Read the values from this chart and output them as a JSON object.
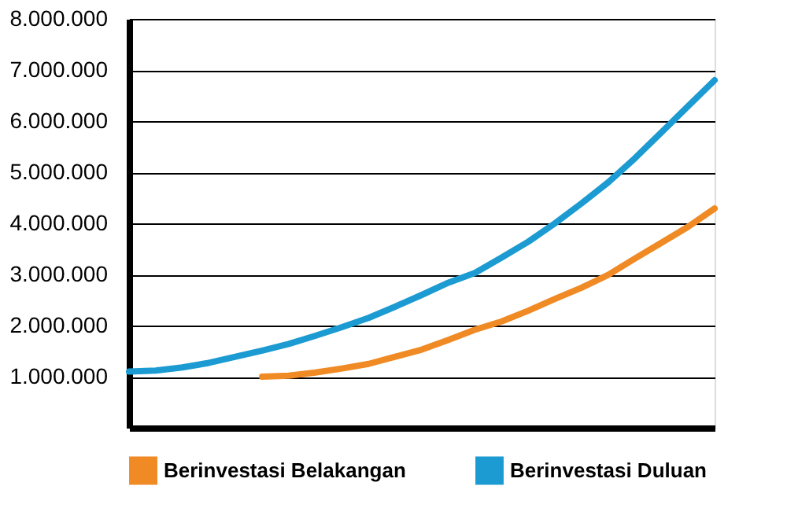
{
  "chart_data": {
    "type": "line",
    "categories": [
      null,
      null,
      null,
      null,
      null,
      null,
      null,
      null,
      null,
      null,
      null,
      null,
      null,
      null,
      null,
      null,
      null,
      null,
      null,
      null,
      null,
      null,
      null
    ],
    "series": [
      {
        "name": "Berinvestasi Belakangan",
        "color": "#f08a24",
        "values": [
          null,
          null,
          null,
          null,
          null,
          1000000,
          1020000,
          1080000,
          1160000,
          1250000,
          1390000,
          1530000,
          1720000,
          1920000,
          2080000,
          2290000,
          2520000,
          2740000,
          2990000,
          3310000,
          3620000,
          3930000,
          4290000
        ]
      },
      {
        "name": "Berinvestasi Duluan",
        "color": "#1b9bd1",
        "values": [
          1100000,
          1120000,
          1180000,
          1270000,
          1390000,
          1510000,
          1640000,
          1800000,
          1970000,
          2150000,
          2370000,
          2600000,
          2840000,
          3030000,
          3330000,
          3640000,
          4000000,
          4390000,
          4800000,
          5270000,
          5780000,
          6290000,
          6800000
        ]
      }
    ],
    "ylim": [
      0,
      8000000
    ],
    "yticks": [
      {
        "value": 1000000,
        "label": "1.000.000"
      },
      {
        "value": 2000000,
        "label": "2.000.000"
      },
      {
        "value": 3000000,
        "label": "3.000.000"
      },
      {
        "value": 4000000,
        "label": "4.000.000"
      },
      {
        "value": 5000000,
        "label": "5.000.000"
      },
      {
        "value": 6000000,
        "label": "6.000.000"
      },
      {
        "value": 7000000,
        "label": "7.000.000"
      },
      {
        "value": 8000000,
        "label": "8.000.000"
      }
    ],
    "grid": "y",
    "legend": "bottom",
    "tick_labels": "y",
    "marker": "none",
    "line_style": "solid"
  }
}
